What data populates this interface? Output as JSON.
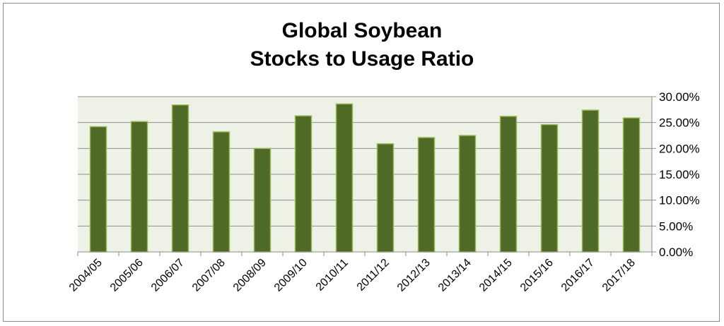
{
  "chart_data": {
    "type": "bar",
    "title_line1": "Global Soybean",
    "title_line2": "Stocks to Usage Ratio",
    "categories": [
      "2004/05",
      "2005/06",
      "2006/07",
      "2007/08",
      "2008/09",
      "2009/10",
      "2010/11",
      "2011/12",
      "2012/13",
      "2013/14",
      "2014/15",
      "2015/16",
      "2016/17",
      "2017/18"
    ],
    "values": [
      24.2,
      25.2,
      28.4,
      23.2,
      20.0,
      26.3,
      28.6,
      20.9,
      22.1,
      22.5,
      26.2,
      24.6,
      27.4,
      25.9
    ],
    "y_ticks": [
      "0.00%",
      "5.00%",
      "10.00%",
      "15.00%",
      "20.00%",
      "25.00%",
      "30.00%"
    ],
    "ylim": [
      0,
      30
    ],
    "y_axis_side": "right",
    "grid": true,
    "colors": {
      "bar_fill": "#4e6a26",
      "bar_edge": "#9bbb59",
      "plot_background": "#eef2e6",
      "gridline": "#8c8c8c"
    }
  }
}
